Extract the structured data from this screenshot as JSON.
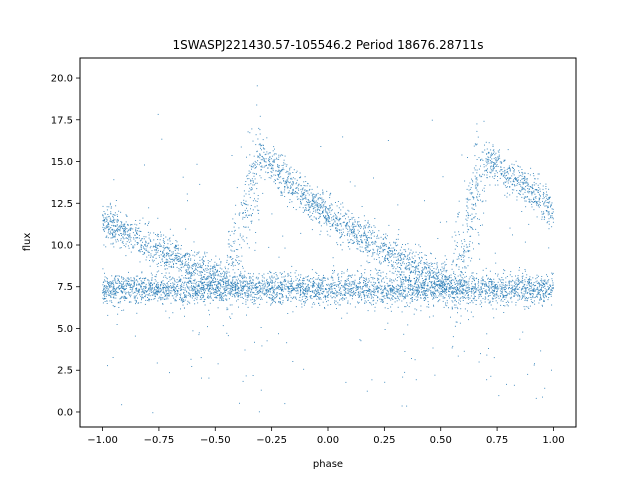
{
  "chart_data": {
    "type": "scatter",
    "title": "1SWASPJ221430.57-105546.2 Period 18676.28711s",
    "xlabel": "phase",
    "ylabel": "flux",
    "xlim": [
      -1.1,
      1.1
    ],
    "ylim": [
      -0.9,
      21.2
    ],
    "x_ticks": [
      -1.0,
      -0.75,
      -0.5,
      -0.25,
      0.0,
      0.25,
      0.5,
      0.75,
      1.0
    ],
    "x_tick_labels": [
      "−1.00",
      "−0.75",
      "−0.50",
      "−0.25",
      "0.00",
      "0.25",
      "0.50",
      "0.75",
      "1.00"
    ],
    "y_ticks": [
      0.0,
      2.5,
      5.0,
      7.5,
      10.0,
      12.5,
      15.0,
      17.5,
      20.0
    ],
    "y_tick_labels": [
      "0.0",
      "2.5",
      "5.0",
      "7.5",
      "10.0",
      "12.5",
      "15.0",
      "17.5",
      "20.0"
    ],
    "grid": false,
    "legend": "none",
    "marker_color": "#1f77b4",
    "series": [
      {
        "description_points": "dense folded light curve: baseline near 7.4 across all phases; decaying branch from ~11.5 at phase -1 to ~7.8 at phase -0.45; rising branch to ~15 near phase -0.3; decaying branch from ~15 at -0.25 to ~7.5 at 0.6; rising to ~15 near 0.7; decay to ~12 at 1.0",
        "x": [
          -1.0,
          -0.9,
          -0.8,
          -0.7,
          -0.6,
          -0.5,
          -0.45,
          -0.4,
          -0.35,
          -0.3,
          -0.25,
          -0.2,
          -0.1,
          0.0,
          0.1,
          0.2,
          0.3,
          0.4,
          0.5,
          0.55,
          0.6,
          0.65,
          0.7,
          0.75,
          0.8,
          0.9,
          1.0
        ],
        "y": [
          11.4,
          10.8,
          10.1,
          9.4,
          8.8,
          8.2,
          7.9,
          9.5,
          13.0,
          15.0,
          14.8,
          14.0,
          12.8,
          11.8,
          10.9,
          10.1,
          9.3,
          8.6,
          8.0,
          7.8,
          9.5,
          13.0,
          15.0,
          14.8,
          14.2,
          13.2,
          12.0
        ]
      }
    ]
  }
}
